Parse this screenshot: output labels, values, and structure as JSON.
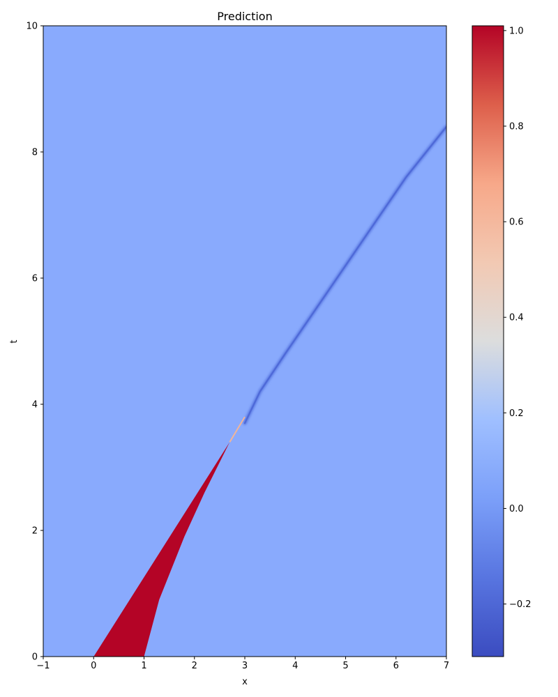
{
  "chart_data": {
    "type": "heatmap",
    "title": "Prediction",
    "xlabel": "x",
    "ylabel": "t",
    "xlim": [
      -1,
      7
    ],
    "ylim": [
      0,
      10
    ],
    "xticks": [
      -1,
      0,
      1,
      2,
      3,
      4,
      5,
      6,
      7
    ],
    "yticks": [
      0,
      2,
      4,
      6,
      8,
      10
    ],
    "background_value": 0.0,
    "colormap": "coolwarm",
    "colorbar": {
      "min": -0.31,
      "max": 1.01,
      "ticks": [
        -0.2,
        0.0,
        0.2,
        0.4,
        0.6,
        0.8,
        1.0
      ],
      "tick_labels": [
        "−0.2",
        "0.0",
        "0.2",
        "0.4",
        "0.6",
        "0.8",
        "1.0"
      ]
    },
    "features": {
      "high_region": {
        "value": 1.0,
        "left_edge": [
          [
            0,
            0
          ],
          [
            2.7,
            3.4
          ]
        ],
        "right_edge": [
          [
            1,
            0
          ],
          [
            1.3,
            0.9
          ],
          [
            1.8,
            1.9
          ],
          [
            2.2,
            2.6
          ],
          [
            2.7,
            3.4
          ]
        ]
      },
      "transition_to_tail": [
        [
          2.7,
          3.4
        ],
        [
          3.0,
          3.8
        ]
      ],
      "negative_front": {
        "value": -0.22,
        "path": [
          [
            3.0,
            3.7
          ],
          [
            3.3,
            4.2
          ],
          [
            3.8,
            4.8
          ],
          [
            4.4,
            5.5
          ],
          [
            5.0,
            6.2
          ],
          [
            5.6,
            6.9
          ],
          [
            6.2,
            7.6
          ],
          [
            7.0,
            8.4
          ]
        ]
      }
    }
  }
}
